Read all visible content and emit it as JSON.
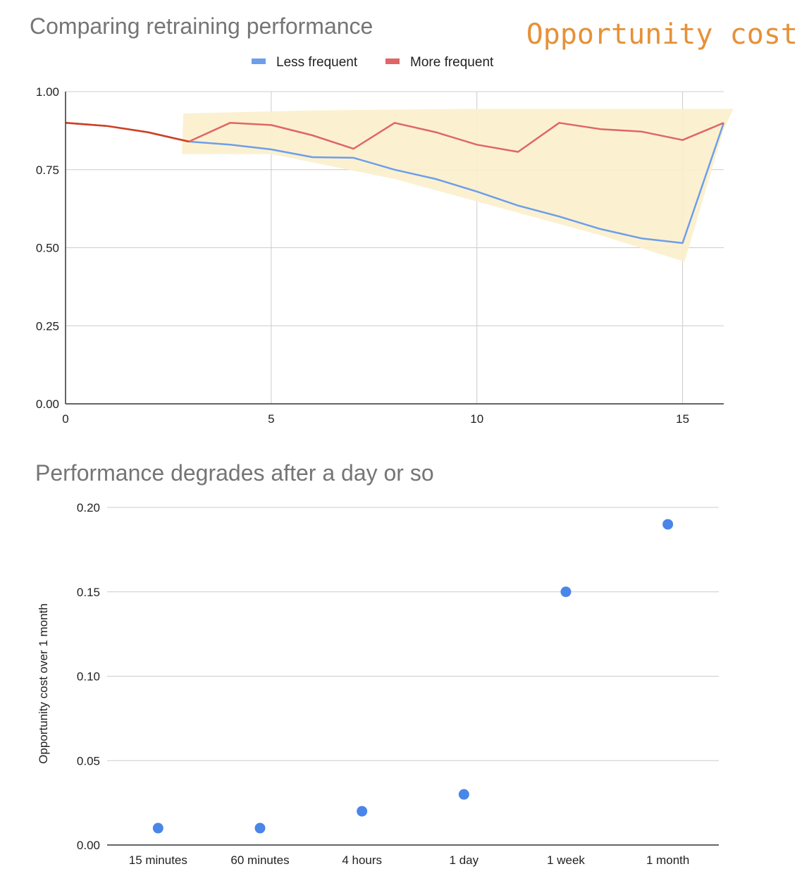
{
  "annotation": {
    "text": "Opportunity cost",
    "color": "#e69138"
  },
  "chart_data": [
    {
      "type": "line",
      "title": "Comparing retraining performance",
      "xlabel": "",
      "ylabel": "",
      "xlim": [
        0,
        16
      ],
      "ylim": [
        0,
        1
      ],
      "x_ticks": [
        0,
        5,
        10,
        15
      ],
      "y_ticks": [
        0,
        0.25,
        0.5,
        0.75,
        1
      ],
      "y_tick_labels": [
        "0.00",
        "0.25",
        "0.50",
        "0.75",
        "1.00"
      ],
      "grid": true,
      "legend_position": "top",
      "highlight_region": {
        "label": "Opportunity cost",
        "color": "#fbefcc",
        "x_start": 3,
        "x_end": 16
      },
      "series": [
        {
          "name": "Less frequent",
          "color": "#6d9eeb",
          "x": [
            3,
            4,
            5,
            6,
            7,
            8,
            9,
            10,
            11,
            12,
            13,
            14,
            15,
            16
          ],
          "values": [
            0.84,
            0.83,
            0.815,
            0.79,
            0.788,
            0.75,
            0.72,
            0.68,
            0.635,
            0.6,
            0.56,
            0.53,
            0.515,
            0.9
          ]
        },
        {
          "name": "More frequent",
          "color": "#e06666",
          "x": [
            0,
            1,
            2,
            3,
            4,
            5,
            6,
            7,
            8,
            9,
            10,
            11,
            12,
            13,
            14,
            15,
            16
          ],
          "values": [
            0.9,
            0.89,
            0.87,
            0.84,
            0.9,
            0.893,
            0.86,
            0.817,
            0.9,
            0.87,
            0.83,
            0.807,
            0.9,
            0.88,
            0.872,
            0.845,
            0.9
          ]
        }
      ]
    },
    {
      "type": "scatter",
      "title": "Performance degrades after a day or so",
      "xlabel": "",
      "ylabel": "Opportunity cost over 1 month",
      "categories": [
        "15 minutes",
        "60 minutes",
        "4 hours",
        "1 day",
        "1 week",
        "1 month"
      ],
      "values": [
        0.01,
        0.01,
        0.02,
        0.03,
        0.15,
        0.19
      ],
      "ylim": [
        0,
        0.2
      ],
      "y_ticks": [
        0,
        0.05,
        0.1,
        0.15,
        0.2
      ],
      "y_tick_labels": [
        "0.00",
        "0.05",
        "0.10",
        "0.15",
        "0.20"
      ],
      "grid": true,
      "color": "#4a86e8"
    }
  ]
}
